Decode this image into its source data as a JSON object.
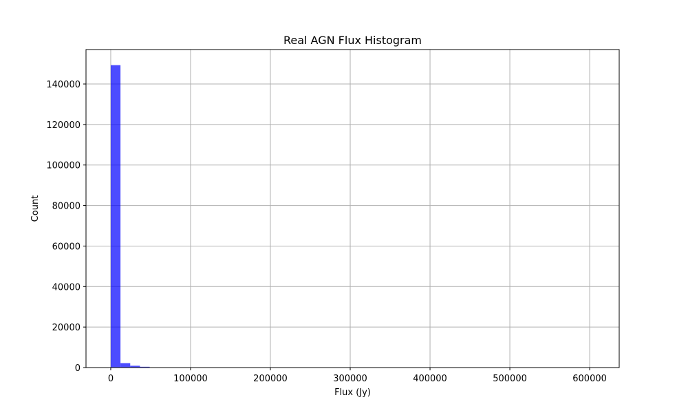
{
  "chart_data": {
    "type": "bar",
    "title": "Real AGN Flux Histogram",
    "xlabel": "Flux (Jy)",
    "ylabel": "Count",
    "xlim": [
      -31000,
      637000
    ],
    "ylim": [
      0,
      157000
    ],
    "x_ticks": [
      0,
      100000,
      200000,
      300000,
      400000,
      500000,
      600000
    ],
    "y_ticks": [
      0,
      20000,
      40000,
      60000,
      80000,
      100000,
      120000,
      140000
    ],
    "x_tick_labels": [
      "0",
      "100000",
      "200000",
      "300000",
      "400000",
      "500000",
      "600000"
    ],
    "y_tick_labels": [
      "0",
      "20000",
      "40000",
      "60000",
      "80000",
      "100000",
      "120000",
      "140000"
    ],
    "grid": true,
    "bin_edges": [
      0,
      12200,
      24400,
      36600,
      48800,
      61000
    ],
    "values": [
      149300,
      2200,
      900,
      400,
      100
    ],
    "bar_color": "#0000ff",
    "bar_opacity": 0.7
  }
}
